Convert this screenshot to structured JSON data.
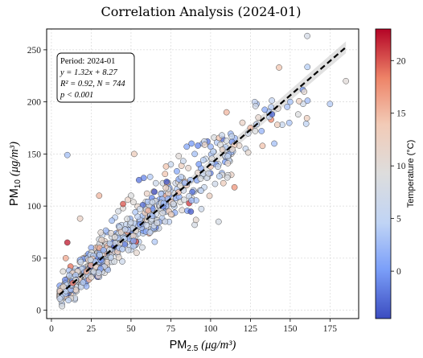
{
  "chart_data": {
    "type": "scatter",
    "title": "Correlation Analysis (2024-01)",
    "xlabel": {
      "base": "PM",
      "sub": "2.5",
      "unit": "(μg/m³)"
    },
    "ylabel": {
      "base": "PM",
      "sub": "10",
      "unit": "(μg/m³)"
    },
    "xlim": [
      -3,
      193
    ],
    "ylim": [
      -8,
      270
    ],
    "xticks": [
      0,
      25,
      50,
      75,
      100,
      125,
      150,
      175
    ],
    "yticks": [
      0,
      50,
      100,
      150,
      200,
      250
    ],
    "grid": true,
    "colorbar": {
      "label": "Temperature (°C)",
      "range": [
        -4.5,
        23
      ],
      "ticks": [
        0,
        5,
        10,
        15,
        20
      ],
      "colormap": "coolwarm",
      "colors": [
        "#3b4cc0",
        "#7b9ff9",
        "#c0d4f5",
        "#dddddd",
        "#f2cbb7",
        "#ee8468",
        "#b40426"
      ]
    },
    "fit": {
      "slope": 1.32,
      "intercept": 8.27,
      "x_range": [
        5,
        185
      ],
      "color": "#000000",
      "band_color": "#c8c8c8"
    },
    "annotation": {
      "period_label": "Period:",
      "period_value": "2024-01",
      "equation": "y = 1.32x + 8.27",
      "r2": "R² = 0.92, N = 744",
      "p": "p < 0.001"
    },
    "n_points": 744,
    "points": [
      [
        185,
        220,
        10
      ],
      [
        143,
        233,
        14
      ],
      [
        175,
        198,
        4
      ],
      [
        160,
        179,
        5
      ],
      [
        138,
        183,
        18
      ],
      [
        150,
        200,
        3
      ],
      [
        155,
        188,
        9
      ],
      [
        138,
        195,
        4
      ],
      [
        130,
        185,
        11
      ],
      [
        128,
        172,
        9
      ],
      [
        132,
        172,
        2
      ],
      [
        145,
        178,
        6
      ],
      [
        125,
        175,
        15
      ],
      [
        118,
        158,
        11
      ],
      [
        140,
        160,
        3
      ],
      [
        120,
        180,
        12
      ],
      [
        108,
        155,
        13
      ],
      [
        113,
        150,
        10
      ],
      [
        112,
        143,
        8
      ],
      [
        122,
        155,
        6
      ],
      [
        95,
        160,
        1
      ],
      [
        98,
        162,
        -2
      ],
      [
        92,
        158,
        -1
      ],
      [
        88,
        160,
        0
      ],
      [
        90,
        150,
        3
      ],
      [
        100,
        157,
        2
      ],
      [
        104,
        161,
        4
      ],
      [
        85,
        157,
        1
      ],
      [
        102,
        152,
        6
      ],
      [
        96,
        162,
        7
      ],
      [
        80,
        148,
        10
      ],
      [
        75,
        140,
        6
      ],
      [
        70,
        122,
        8
      ],
      [
        72,
        138,
        14
      ],
      [
        60,
        112,
        12
      ],
      [
        62,
        128,
        4
      ],
      [
        58,
        127,
        -1
      ],
      [
        55,
        125,
        -2
      ],
      [
        50,
        110,
        9
      ],
      [
        48,
        106,
        12
      ],
      [
        45,
        98,
        10
      ],
      [
        42,
        95,
        8
      ],
      [
        40,
        89,
        5
      ],
      [
        38,
        86,
        3
      ],
      [
        35,
        75,
        1
      ],
      [
        32,
        72,
        6
      ],
      [
        30,
        68,
        8
      ],
      [
        28,
        60,
        14
      ],
      [
        25,
        60,
        2
      ],
      [
        22,
        52,
        10
      ],
      [
        20,
        50,
        12
      ],
      [
        18,
        48,
        -1
      ],
      [
        15,
        40,
        6
      ],
      [
        12,
        35,
        9
      ],
      [
        10,
        30,
        15
      ],
      [
        8,
        25,
        7
      ],
      [
        6,
        18,
        11
      ],
      [
        5,
        15,
        14
      ],
      [
        10,
        149,
        3
      ],
      [
        90,
        82,
        8
      ],
      [
        110,
        190,
        15
      ],
      [
        83,
        115,
        7
      ],
      [
        65,
        78,
        10
      ],
      [
        40,
        60,
        12
      ],
      [
        55,
        85,
        5
      ],
      [
        30,
        110,
        15
      ],
      [
        105,
        85,
        8
      ],
      [
        45,
        102,
        20
      ],
      [
        52,
        150,
        13
      ],
      [
        18,
        88,
        12
      ],
      [
        10,
        65,
        22
      ],
      [
        9,
        50,
        16
      ],
      [
        12,
        42,
        19
      ],
      [
        15,
        30,
        18
      ],
      [
        20,
        28,
        13
      ],
      [
        25,
        35,
        12
      ],
      [
        30,
        32,
        4
      ],
      [
        35,
        40,
        -1
      ],
      [
        40,
        56,
        2
      ],
      [
        48,
        70,
        0
      ],
      [
        60,
        95,
        1
      ],
      [
        65,
        105,
        3
      ],
      [
        70,
        112,
        4
      ],
      [
        78,
        122,
        7
      ],
      [
        85,
        120,
        13
      ],
      [
        92,
        132,
        11
      ],
      [
        100,
        138,
        14
      ],
      [
        115,
        118,
        17
      ],
      [
        113,
        130,
        12
      ],
      [
        108,
        122,
        13
      ],
      [
        96,
        118,
        6
      ],
      [
        88,
        108,
        9
      ],
      [
        82,
        96,
        10
      ],
      [
        76,
        92,
        11
      ],
      [
        70,
        86,
        12
      ],
      [
        62,
        85,
        8
      ]
    ]
  }
}
